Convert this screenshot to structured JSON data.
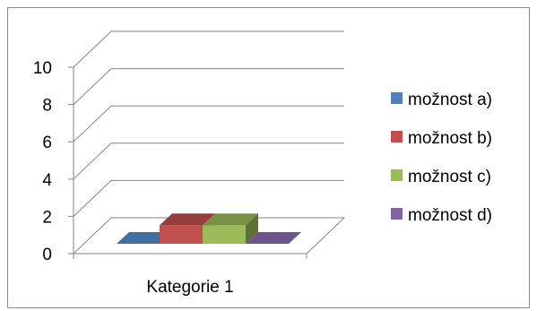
{
  "chart_data": {
    "type": "bar",
    "style": "3d-clustered",
    "categories": [
      "Kategorie 1"
    ],
    "series": [
      {
        "name": "možnost a)",
        "values": [
          0
        ],
        "color": "#4f81bd"
      },
      {
        "name": "možnost b)",
        "values": [
          1
        ],
        "color": "#c0504d"
      },
      {
        "name": "možnost c)",
        "values": [
          1
        ],
        "color": "#9bbb59"
      },
      {
        "name": "možnost d)",
        "values": [
          0
        ],
        "color": "#8064a2"
      }
    ],
    "yticks": [
      "0",
      "2",
      "4",
      "6",
      "8",
      "10"
    ],
    "ylim": [
      0,
      10
    ],
    "grid": true,
    "legend_position": "right"
  }
}
